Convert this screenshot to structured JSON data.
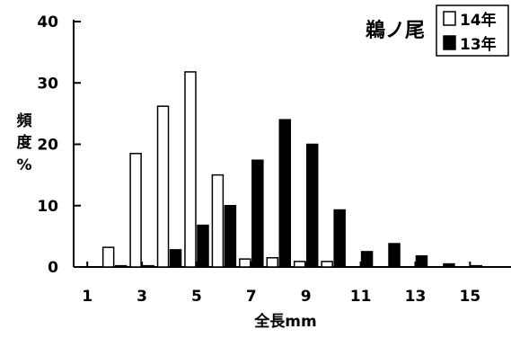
{
  "chart_data": {
    "type": "bar",
    "title": "鵜ノ尾",
    "xlabel": "全長mm",
    "ylabel": [
      "頻",
      "度",
      "%"
    ],
    "ylim": [
      0,
      40
    ],
    "yticks": [
      0,
      10,
      20,
      30,
      40
    ],
    "xlim": [
      0.5,
      16.5
    ],
    "xticks": [
      1,
      3,
      5,
      7,
      9,
      11,
      13,
      15
    ],
    "categories": [
      1,
      2,
      3,
      4,
      5,
      6,
      7,
      8,
      9,
      10,
      11,
      12,
      13,
      14,
      15,
      16
    ],
    "grid": false,
    "legend_position": "top-right",
    "series": [
      {
        "name": "14年",
        "fill": "#ffffff",
        "values": [
          0,
          3.2,
          18.5,
          26.2,
          31.8,
          15,
          1.3,
          1.5,
          0.9,
          0.9,
          0,
          0,
          0,
          0,
          0,
          0
        ]
      },
      {
        "name": "13年",
        "fill": "#000000",
        "values": [
          0,
          0.2,
          0.2,
          2.8,
          6.8,
          10,
          17.4,
          24,
          20,
          9.3,
          2.5,
          3.8,
          1.8,
          0.5,
          0.2,
          0
        ]
      }
    ]
  }
}
